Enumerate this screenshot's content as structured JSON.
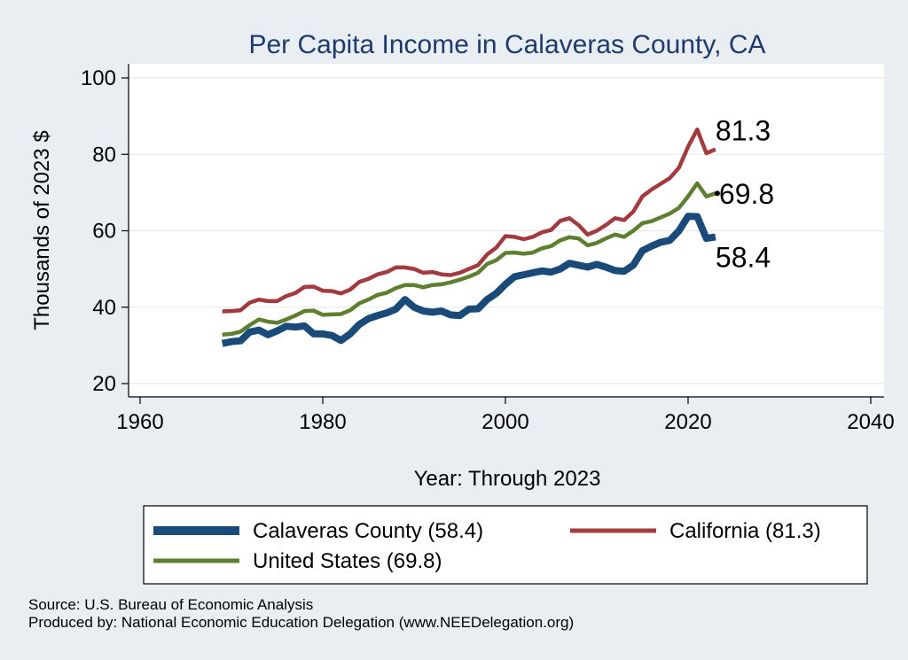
{
  "chart_data": {
    "type": "line",
    "title": "Per Capita Income in Calaveras County, CA",
    "xlabel": "Year: Through 2023",
    "ylabel": "Thousands of 2023 $",
    "xlim": [
      1960,
      2040
    ],
    "ylim": [
      20,
      100
    ],
    "xticks": [
      "1960",
      "1980",
      "2000",
      "2020",
      "2040"
    ],
    "yticks": [
      "20",
      "40",
      "60",
      "80",
      "100"
    ],
    "x": [
      1969,
      1970,
      1971,
      1972,
      1973,
      1974,
      1975,
      1976,
      1977,
      1978,
      1979,
      1980,
      1981,
      1982,
      1983,
      1984,
      1985,
      1986,
      1987,
      1988,
      1989,
      1990,
      1991,
      1992,
      1993,
      1994,
      1995,
      1996,
      1997,
      1998,
      1999,
      2000,
      2001,
      2002,
      2003,
      2004,
      2005,
      2006,
      2007,
      2008,
      2009,
      2010,
      2011,
      2012,
      2013,
      2014,
      2015,
      2016,
      2017,
      2018,
      2019,
      2020,
      2021,
      2022,
      2023
    ],
    "series": [
      {
        "name": "Calaveras County (58.4)",
        "color": "#1a4a7a",
        "end_label": "58.4",
        "values": [
          30.5,
          31.0,
          31.2,
          33.5,
          34.0,
          32.8,
          33.8,
          35.0,
          34.8,
          35.1,
          33.0,
          33.0,
          32.6,
          31.3,
          33.0,
          35.5,
          37.0,
          37.8,
          38.5,
          39.5,
          42.0,
          40.0,
          39.0,
          38.7,
          39.0,
          38.0,
          37.8,
          39.5,
          39.6,
          42.0,
          43.6,
          46.0,
          48.0,
          48.5,
          49.0,
          49.5,
          49.2,
          50.0,
          51.5,
          51.0,
          50.5,
          51.2,
          50.5,
          49.6,
          49.4,
          51.0,
          54.8,
          56.0,
          57.0,
          57.5,
          60.0,
          63.8,
          63.7,
          58.0,
          58.4
        ]
      },
      {
        "name": "California (81.3)",
        "color": "#a33a40",
        "end_label": "81.3",
        "values": [
          38.9,
          39.0,
          39.2,
          41.2,
          42.0,
          41.6,
          41.6,
          42.9,
          43.7,
          45.3,
          45.4,
          44.3,
          44.2,
          43.6,
          44.6,
          46.6,
          47.4,
          48.6,
          49.2,
          50.4,
          50.4,
          50.0,
          49.0,
          49.2,
          48.6,
          48.4,
          49.0,
          50.0,
          51.0,
          53.8,
          55.6,
          58.6,
          58.4,
          57.8,
          58.4,
          59.6,
          60.2,
          62.6,
          63.3,
          61.5,
          59.0,
          60.0,
          61.5,
          63.3,
          62.8,
          65.0,
          69.0,
          70.8,
          72.3,
          73.8,
          76.5,
          82.0,
          86.5,
          80.3,
          81.3
        ]
      },
      {
        "name": "United States (69.8)",
        "color": "#5e7e30",
        "end_label": "69.8",
        "values": [
          32.8,
          33.0,
          33.6,
          35.3,
          36.8,
          36.2,
          35.9,
          36.8,
          37.8,
          39.0,
          39.1,
          38.0,
          38.1,
          38.2,
          39.2,
          41.0,
          42.0,
          43.2,
          43.8,
          45.0,
          45.8,
          45.8,
          45.2,
          45.8,
          46.0,
          46.5,
          47.2,
          48.0,
          49.0,
          51.3,
          52.3,
          54.2,
          54.3,
          54.0,
          54.3,
          55.4,
          56.0,
          57.5,
          58.3,
          58.0,
          56.2,
          56.8,
          58.0,
          59.0,
          58.4,
          60.0,
          62.0,
          62.5,
          63.5,
          64.5,
          66.0,
          69.0,
          72.4,
          69.0,
          69.8
        ]
      }
    ],
    "legend": {
      "position": "bottom",
      "entries": [
        "Calaveras County (58.4)",
        "California (81.3)",
        "United States (69.8)"
      ]
    },
    "grid": true
  },
  "notes": {
    "source": "Source: U.S. Bureau of Economic Analysis",
    "produced": "Produced by: National Economic Education Delegation (www.NEEDelegation.org)"
  }
}
